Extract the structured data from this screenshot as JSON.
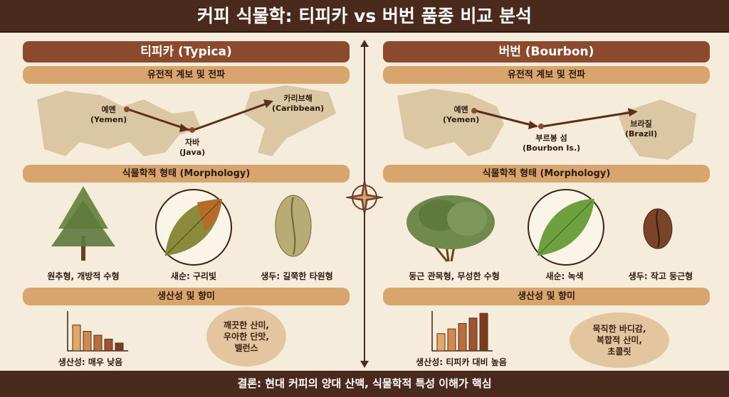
{
  "title": "커피 식물학: 티피카 vs 버번 품종 비교 분석",
  "footer": "결론: 현대 커피의 양대 산맥, 식물학적 특성 이해가 핵심",
  "colors": {
    "header": "#4a2a1c",
    "title_bar": "#8b4a2e",
    "section_bar": "#d9a56f",
    "background": "#f6ecdc"
  },
  "typica": {
    "title": "티피카 (Typica)",
    "sec_genetics": "유전적 계보 및 전파",
    "map": {
      "origin": "예멘\n(Yemen)",
      "stop": "자바\n(Java)",
      "dest": "카리브해\n(Caribbean)"
    },
    "sec_morph": "식물학적 형태 (Morphology)",
    "shape": "원추형, 개방적 수형",
    "leaf": "새순: 구리빛",
    "bean": "생두: 길쭉한 타원형",
    "sec_prod": "생산성 및 향미",
    "productivity": "생산성: 매우 낮음",
    "flavor": "깨끗한 산미,\n우아한 단맛,\n밸런스",
    "chart_values": [
      33,
      25,
      20,
      15,
      10
    ]
  },
  "bourbon": {
    "title": "버번 (Bourbon)",
    "sec_genetics": "유전적 계보 및 전파",
    "map": {
      "origin": "예멘\n(Yemen)",
      "stop": "부르봉 섬\n(Bourbon Is.)",
      "dest": "브라질\n(Brazil)"
    },
    "sec_morph": "식물학적 형태 (Morphology)",
    "shape": "둥근 관목형, 무성한 수형",
    "leaf": "새순: 녹색",
    "bean": "생두: 작고 둥근형",
    "sec_prod": "생산성 및 향미",
    "productivity": "생산성: 티피카 대비 높음",
    "flavor": "묵직한 바디감,\n복합적 산미,\n초콜릿",
    "chart_values": [
      22,
      28,
      35,
      42,
      48
    ]
  }
}
